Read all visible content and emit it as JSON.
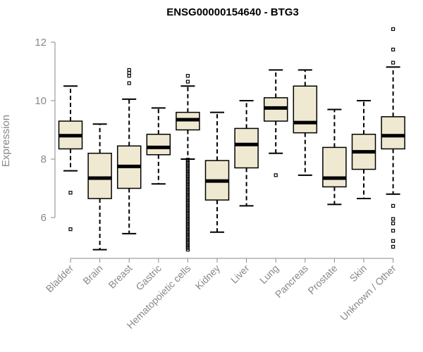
{
  "chart_data": {
    "type": "boxplot",
    "title": "ENSG00000154640 - BTG3",
    "xlabel": "",
    "ylabel": "Expression",
    "ylim": [
      4.6,
      12.6
    ],
    "yticks": [
      6,
      8,
      10,
      12
    ],
    "grid": false,
    "legend": "none",
    "colors": {
      "box_fill": "#efe9d2",
      "box_stroke": "#000000",
      "axis": "#888888"
    },
    "categories": [
      "Bladder",
      "Brain",
      "Breast",
      "Gastric",
      "Hematopoietic cells",
      "Kidney",
      "Liver",
      "Lung",
      "Pancreas",
      "Prostate",
      "Skin",
      "Unknown / Other"
    ],
    "boxes": [
      {
        "q1": 8.35,
        "median": 8.8,
        "q3": 9.3,
        "whisker_low": 7.6,
        "whisker_high": 10.5,
        "outliers": [
          6.85,
          5.6
        ]
      },
      {
        "q1": 6.65,
        "median": 7.35,
        "q3": 8.2,
        "whisker_low": 4.9,
        "whisker_high": 9.2,
        "outliers": []
      },
      {
        "q1": 7.0,
        "median": 7.75,
        "q3": 8.45,
        "whisker_low": 5.45,
        "whisker_high": 10.05,
        "outliers": [
          10.6,
          10.85,
          10.95,
          11.05
        ]
      },
      {
        "q1": 8.15,
        "median": 8.4,
        "q3": 8.85,
        "whisker_low": 7.15,
        "whisker_high": 9.75,
        "outliers": []
      },
      {
        "q1": 9.0,
        "median": 9.35,
        "q3": 9.6,
        "whisker_low": 8.0,
        "whisker_high": 10.5,
        "outliers": [
          10.65,
          10.85
        ],
        "dense_low": [
          4.9,
          8.0
        ]
      },
      {
        "q1": 6.6,
        "median": 7.25,
        "q3": 7.95,
        "whisker_low": 5.5,
        "whisker_high": 9.6,
        "outliers": []
      },
      {
        "q1": 7.7,
        "median": 8.5,
        "q3": 9.05,
        "whisker_low": 6.4,
        "whisker_high": 10.0,
        "outliers": []
      },
      {
        "q1": 9.3,
        "median": 9.75,
        "q3": 10.1,
        "whisker_low": 8.2,
        "whisker_high": 11.05,
        "outliers": [
          7.45
        ]
      },
      {
        "q1": 8.9,
        "median": 9.25,
        "q3": 10.5,
        "whisker_low": 7.45,
        "whisker_high": 11.05,
        "outliers": []
      },
      {
        "q1": 7.05,
        "median": 7.35,
        "q3": 8.4,
        "whisker_low": 6.45,
        "whisker_high": 9.7,
        "outliers": []
      },
      {
        "q1": 7.65,
        "median": 8.25,
        "q3": 8.85,
        "whisker_low": 6.65,
        "whisker_high": 10.0,
        "outliers": []
      },
      {
        "q1": 8.35,
        "median": 8.8,
        "q3": 9.45,
        "whisker_low": 6.8,
        "whisker_high": 11.15,
        "outliers": [
          11.3,
          11.75,
          12.45,
          6.4,
          5.95,
          5.8,
          5.55,
          5.2,
          5.0
        ]
      }
    ]
  }
}
